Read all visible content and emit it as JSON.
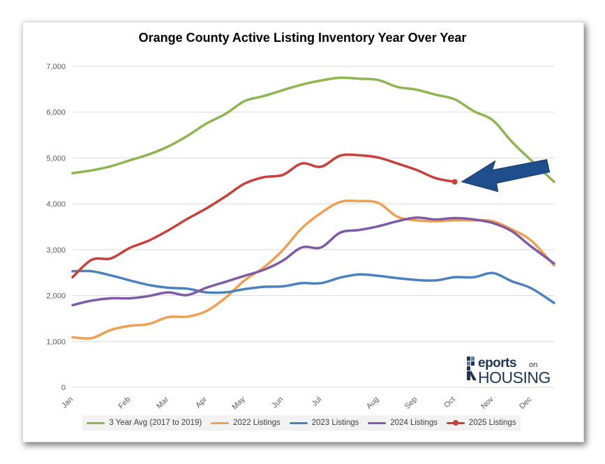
{
  "chart_data": {
    "type": "line",
    "title": "Orange County Active Listing Inventory Year Over Year",
    "xlabel": "",
    "ylabel": "",
    "ylim": [
      0,
      7000
    ],
    "yticks": [
      "0",
      "1,000",
      "2,000",
      "3,000",
      "4,000",
      "5,000",
      "6,000",
      "7,000"
    ],
    "ytick_values": [
      0,
      1000,
      2000,
      3000,
      4000,
      5000,
      6000,
      7000
    ],
    "x": [
      0,
      0.5,
      1,
      1.5,
      2,
      2.5,
      3,
      3.5,
      4,
      4.5,
      5,
      5.5,
      6,
      6.5,
      7,
      7.5,
      8,
      8.5,
      9,
      9.5,
      10,
      10.5,
      11,
      11.5,
      12
    ],
    "xticks": [
      {
        "label": "Jan",
        "pos": 0
      },
      {
        "label": "Feb",
        "pos": 1.5
      },
      {
        "label": "Mar",
        "pos": 2.5
      },
      {
        "label": "Apr",
        "pos": 3.5
      },
      {
        "label": "May",
        "pos": 4.5
      },
      {
        "label": "Jun",
        "pos": 5.5
      },
      {
        "label": "Jul",
        "pos": 6.5
      },
      {
        "label": "Aug",
        "pos": 8
      },
      {
        "label": "Sep",
        "pos": 9
      },
      {
        "label": "Oct",
        "pos": 10
      },
      {
        "label": "Nov",
        "pos": 11
      },
      {
        "label": "Dec",
        "pos": 12
      }
    ],
    "xlim": [
      0,
      12.6
    ],
    "grid": true,
    "legend_position": "bottom",
    "series": [
      {
        "name": "3 Year Avg (2017 to 2019)",
        "color": "#8DB650",
        "values": [
          4670,
          4730,
          4820,
          4950,
          5080,
          5250,
          5480,
          5750,
          5960,
          6240,
          6350,
          6480,
          6600,
          6690,
          6750,
          6730,
          6700,
          6550,
          6490,
          6380,
          6280,
          6020,
          5820,
          5350,
          4950
        ],
        "extra": [
          [
            12.6,
            4480
          ]
        ]
      },
      {
        "name": "2022 Listings",
        "color": "#F0A050",
        "values": [
          1090,
          1070,
          1250,
          1340,
          1380,
          1530,
          1540,
          1660,
          1950,
          2330,
          2610,
          2990,
          3470,
          3800,
          4040,
          4060,
          4020,
          3720,
          3640,
          3620,
          3640,
          3640,
          3620,
          3440,
          3200
        ],
        "extra": [
          [
            12.6,
            2660
          ]
        ]
      },
      {
        "name": "2023 Listings",
        "color": "#4A82C0",
        "values": [
          2530,
          2530,
          2440,
          2330,
          2230,
          2170,
          2150,
          2070,
          2070,
          2140,
          2190,
          2200,
          2270,
          2270,
          2390,
          2460,
          2430,
          2380,
          2340,
          2330,
          2400,
          2400,
          2490,
          2310,
          2160
        ],
        "extra": [
          [
            12.6,
            1840
          ]
        ]
      },
      {
        "name": "2024 Listings",
        "color": "#7F5AA6",
        "values": [
          1790,
          1890,
          1940,
          1940,
          1990,
          2070,
          2010,
          2170,
          2300,
          2430,
          2560,
          2760,
          3050,
          3050,
          3370,
          3430,
          3510,
          3620,
          3700,
          3660,
          3690,
          3660,
          3580,
          3400,
          3070
        ],
        "extra": [
          [
            12.6,
            2700
          ]
        ]
      },
      {
        "name": "2025 Listings",
        "color": "#C9403A",
        "values": [
          2400,
          2780,
          2810,
          3040,
          3200,
          3420,
          3670,
          3900,
          4160,
          4440,
          4580,
          4630,
          4880,
          4810,
          5050,
          5060,
          5010,
          4880,
          4740,
          4560,
          4480,
          null,
          null,
          null,
          null
        ],
        "extra": []
      }
    ]
  }
}
